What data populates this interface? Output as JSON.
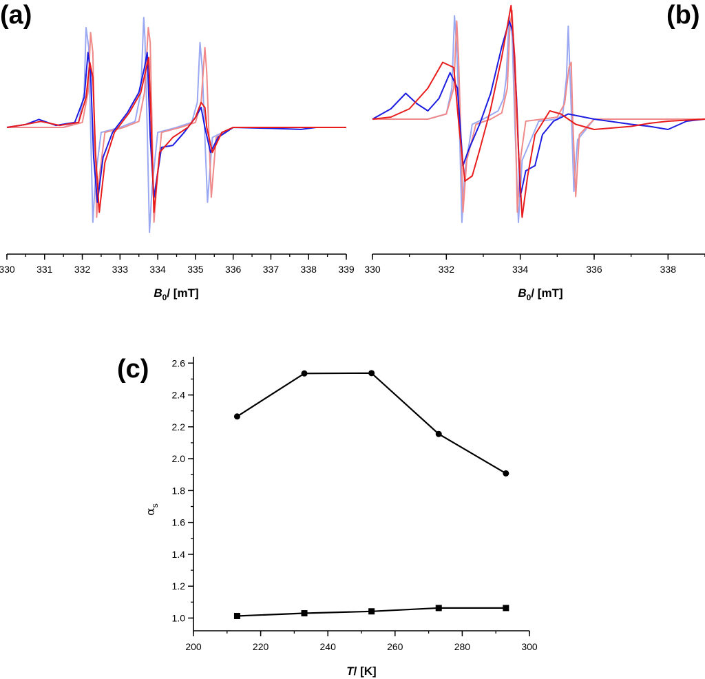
{
  "chart_data": [
    {
      "panel": "(a)",
      "type": "line",
      "xlabel": "B0/ [mT]",
      "xlabel_main": "B",
      "xlabel_sub": "0",
      "xlabel_rest": "/ [mT]",
      "xlim": [
        330,
        339
      ],
      "xticks": [
        330,
        331,
        332,
        333,
        334,
        335,
        336,
        337,
        338,
        339
      ],
      "y_axis_shown": false,
      "series": [
        {
          "color": "#9aa8f2",
          "x": [
            330.0,
            331.5,
            331.9,
            332.05,
            332.1,
            332.17,
            332.22,
            332.28,
            332.35,
            332.5,
            333.0,
            333.4,
            333.55,
            333.63,
            333.66,
            333.72,
            333.78,
            333.85,
            334.0,
            334.5,
            334.9,
            335.05,
            335.12,
            335.18,
            335.24,
            335.32,
            335.45,
            336.0,
            339.0
          ],
          "y": [
            0.0,
            0.0,
            0.05,
            0.35,
            1.0,
            0.8,
            0.0,
            -0.95,
            -0.5,
            -0.05,
            0.0,
            0.06,
            0.35,
            1.1,
            0.9,
            0.0,
            -1.05,
            -0.6,
            -0.05,
            0.0,
            0.05,
            0.25,
            0.85,
            0.6,
            0.0,
            -0.75,
            -0.1,
            0.0,
            0.0
          ]
        },
        {
          "color": "#f08a8a",
          "x": [
            330.0,
            331.5,
            332.0,
            332.15,
            332.22,
            332.28,
            332.32,
            332.38,
            332.45,
            332.6,
            333.1,
            333.5,
            333.65,
            333.75,
            333.8,
            333.85,
            333.9,
            333.98,
            334.1,
            334.6,
            335.0,
            335.15,
            335.25,
            335.3,
            335.35,
            335.42,
            335.55,
            336.0,
            339.0
          ],
          "y": [
            0.0,
            0.0,
            0.05,
            0.35,
            0.95,
            0.75,
            0.0,
            -0.9,
            -0.5,
            -0.05,
            0.0,
            0.06,
            0.35,
            1.0,
            0.85,
            0.0,
            -0.95,
            -0.55,
            -0.05,
            0.0,
            0.05,
            0.25,
            0.8,
            0.55,
            0.0,
            -0.7,
            -0.1,
            0.0,
            0.0
          ]
        },
        {
          "color": "#1c1ce0",
          "x": [
            330.0,
            330.5,
            330.85,
            331.3,
            331.8,
            332.05,
            332.15,
            332.22,
            332.3,
            332.4,
            332.55,
            332.8,
            333.2,
            333.5,
            333.65,
            333.72,
            333.8,
            333.9,
            334.1,
            334.4,
            334.7,
            335.0,
            335.15,
            335.25,
            335.4,
            335.6,
            336.0,
            337.0,
            337.8,
            338.2,
            339.0
          ],
          "y": [
            0.0,
            0.03,
            0.08,
            0.02,
            0.05,
            0.3,
            0.75,
            0.55,
            -0.3,
            -0.75,
            -0.3,
            -0.05,
            0.15,
            0.35,
            0.6,
            0.75,
            -0.1,
            -0.7,
            -0.2,
            -0.18,
            -0.05,
            0.1,
            0.2,
            0.0,
            -0.25,
            -0.1,
            0.0,
            -0.01,
            -0.02,
            0.0,
            0.0
          ]
        },
        {
          "color": "#e81c1c",
          "x": [
            330.0,
            330.5,
            330.9,
            331.4,
            331.9,
            332.1,
            332.2,
            332.28,
            332.35,
            332.45,
            332.6,
            332.85,
            333.25,
            333.55,
            333.7,
            333.76,
            333.82,
            333.9,
            334.05,
            334.4,
            334.8,
            335.0,
            335.15,
            335.25,
            335.3,
            335.45,
            335.7,
            336.0,
            337.0,
            339.0
          ],
          "y": [
            0.0,
            0.03,
            0.06,
            0.02,
            0.05,
            0.3,
            0.65,
            0.5,
            -0.25,
            -0.85,
            -0.35,
            -0.05,
            0.15,
            0.35,
            0.6,
            0.7,
            0.1,
            -0.85,
            -0.25,
            -0.1,
            0.0,
            0.1,
            0.25,
            0.2,
            0.0,
            -0.25,
            -0.05,
            0.0,
            0.0,
            0.0
          ]
        }
      ]
    },
    {
      "panel": "(b)",
      "type": "line",
      "xlabel": "B0/ [mT]",
      "xlabel_main": "B",
      "xlabel_sub": "0",
      "xlabel_rest": "/ [mT]",
      "xlim": [
        330,
        339
      ],
      "xticks": [
        330,
        332,
        334,
        336,
        338
      ],
      "y_axis_shown": false,
      "series": [
        {
          "color": "#9aa8f2",
          "x": [
            330.0,
            331.5,
            332.0,
            332.15,
            332.22,
            332.28,
            332.35,
            332.42,
            332.5,
            332.7,
            333.0,
            333.4,
            333.55,
            333.62,
            333.7,
            333.78,
            333.85,
            333.95,
            334.05,
            334.5,
            335.0,
            335.15,
            335.25,
            335.3,
            335.38,
            335.45,
            335.55,
            336.0,
            339.0
          ],
          "y": [
            0.0,
            0.0,
            0.05,
            0.3,
            1.0,
            0.7,
            0.0,
            -1.0,
            -0.5,
            -0.05,
            0.0,
            0.08,
            0.2,
            0.4,
            1.0,
            0.8,
            0.0,
            -1.0,
            -0.4,
            -0.02,
            0.0,
            0.05,
            0.4,
            0.9,
            0.1,
            -0.7,
            -0.2,
            0.0,
            0.0
          ]
        },
        {
          "color": "#f08a8a",
          "x": [
            330.0,
            331.5,
            332.0,
            332.2,
            332.28,
            332.33,
            332.38,
            332.45,
            332.55,
            332.8,
            333.2,
            333.5,
            333.65,
            333.72,
            333.78,
            333.85,
            333.92,
            334.02,
            334.15,
            334.6,
            335.0,
            335.2,
            335.32,
            335.38,
            335.42,
            335.5,
            335.6,
            336.0,
            339.0
          ],
          "y": [
            0.0,
            0.0,
            0.05,
            0.3,
            0.95,
            0.6,
            0.0,
            -0.9,
            -0.4,
            -0.05,
            0.0,
            0.06,
            0.3,
            0.9,
            1.05,
            0.3,
            -0.9,
            -0.35,
            -0.02,
            0.0,
            0.02,
            0.15,
            0.5,
            0.55,
            0.0,
            -0.75,
            -0.15,
            0.0,
            0.0
          ]
        },
        {
          "color": "#1c1ce0",
          "x": [
            330.0,
            330.5,
            330.9,
            331.2,
            331.5,
            331.8,
            332.1,
            332.3,
            332.45,
            332.6,
            332.9,
            333.2,
            333.5,
            333.7,
            333.8,
            333.9,
            334.0,
            334.15,
            334.4,
            334.6,
            334.9,
            335.3,
            336.0,
            337.0,
            337.5,
            338.0,
            338.5,
            339.0
          ],
          "y": [
            0.0,
            0.1,
            0.25,
            0.15,
            0.08,
            0.2,
            0.45,
            0.3,
            -0.45,
            -0.3,
            -0.05,
            0.25,
            0.7,
            0.95,
            0.85,
            0.2,
            -0.75,
            -0.5,
            -0.45,
            -0.15,
            -0.02,
            0.05,
            0.0,
            -0.05,
            -0.07,
            -0.1,
            -0.02,
            0.0
          ]
        },
        {
          "color": "#e81c1c",
          "x": [
            330.0,
            330.5,
            331.0,
            331.5,
            331.9,
            332.2,
            332.35,
            332.5,
            332.7,
            332.9,
            333.2,
            333.5,
            333.75,
            333.85,
            333.95,
            334.05,
            334.2,
            334.4,
            334.8,
            335.1,
            335.5,
            336.0,
            337.0,
            337.5,
            338.0,
            339.0
          ],
          "y": [
            0.0,
            0.02,
            0.1,
            0.3,
            0.55,
            0.5,
            -0.1,
            -0.6,
            -0.55,
            -0.3,
            0.1,
            0.6,
            1.1,
            0.6,
            -0.3,
            -0.95,
            -0.55,
            -0.15,
            0.08,
            0.05,
            -0.05,
            -0.1,
            -0.07,
            -0.04,
            -0.02,
            0.0
          ]
        }
      ]
    },
    {
      "panel": "(c)",
      "type": "line",
      "xlabel": "T/ [K]",
      "xlabel_main": "T",
      "xlabel_rest": "/ [K]",
      "ylabel": "αs",
      "ylabel_main": "α",
      "ylabel_sub": "s",
      "xlim": [
        200,
        300
      ],
      "ylim": [
        0.92,
        2.64
      ],
      "xticks": [
        200,
        220,
        240,
        260,
        280,
        300
      ],
      "yticks": [
        "1.0",
        "1.2",
        "1.4",
        "1.6",
        "1.8",
        "2.0",
        "2.2",
        "2.4",
        "2.6"
      ],
      "series": [
        {
          "marker": "circle",
          "color": "#000000",
          "x": [
            213,
            233,
            253,
            273,
            293
          ],
          "y": [
            2.265,
            2.535,
            2.537,
            2.155,
            1.908
          ]
        },
        {
          "marker": "square",
          "color": "#000000",
          "x": [
            213,
            233,
            253,
            273,
            293
          ],
          "y": [
            1.013,
            1.03,
            1.042,
            1.063,
            1.063
          ]
        }
      ]
    }
  ]
}
